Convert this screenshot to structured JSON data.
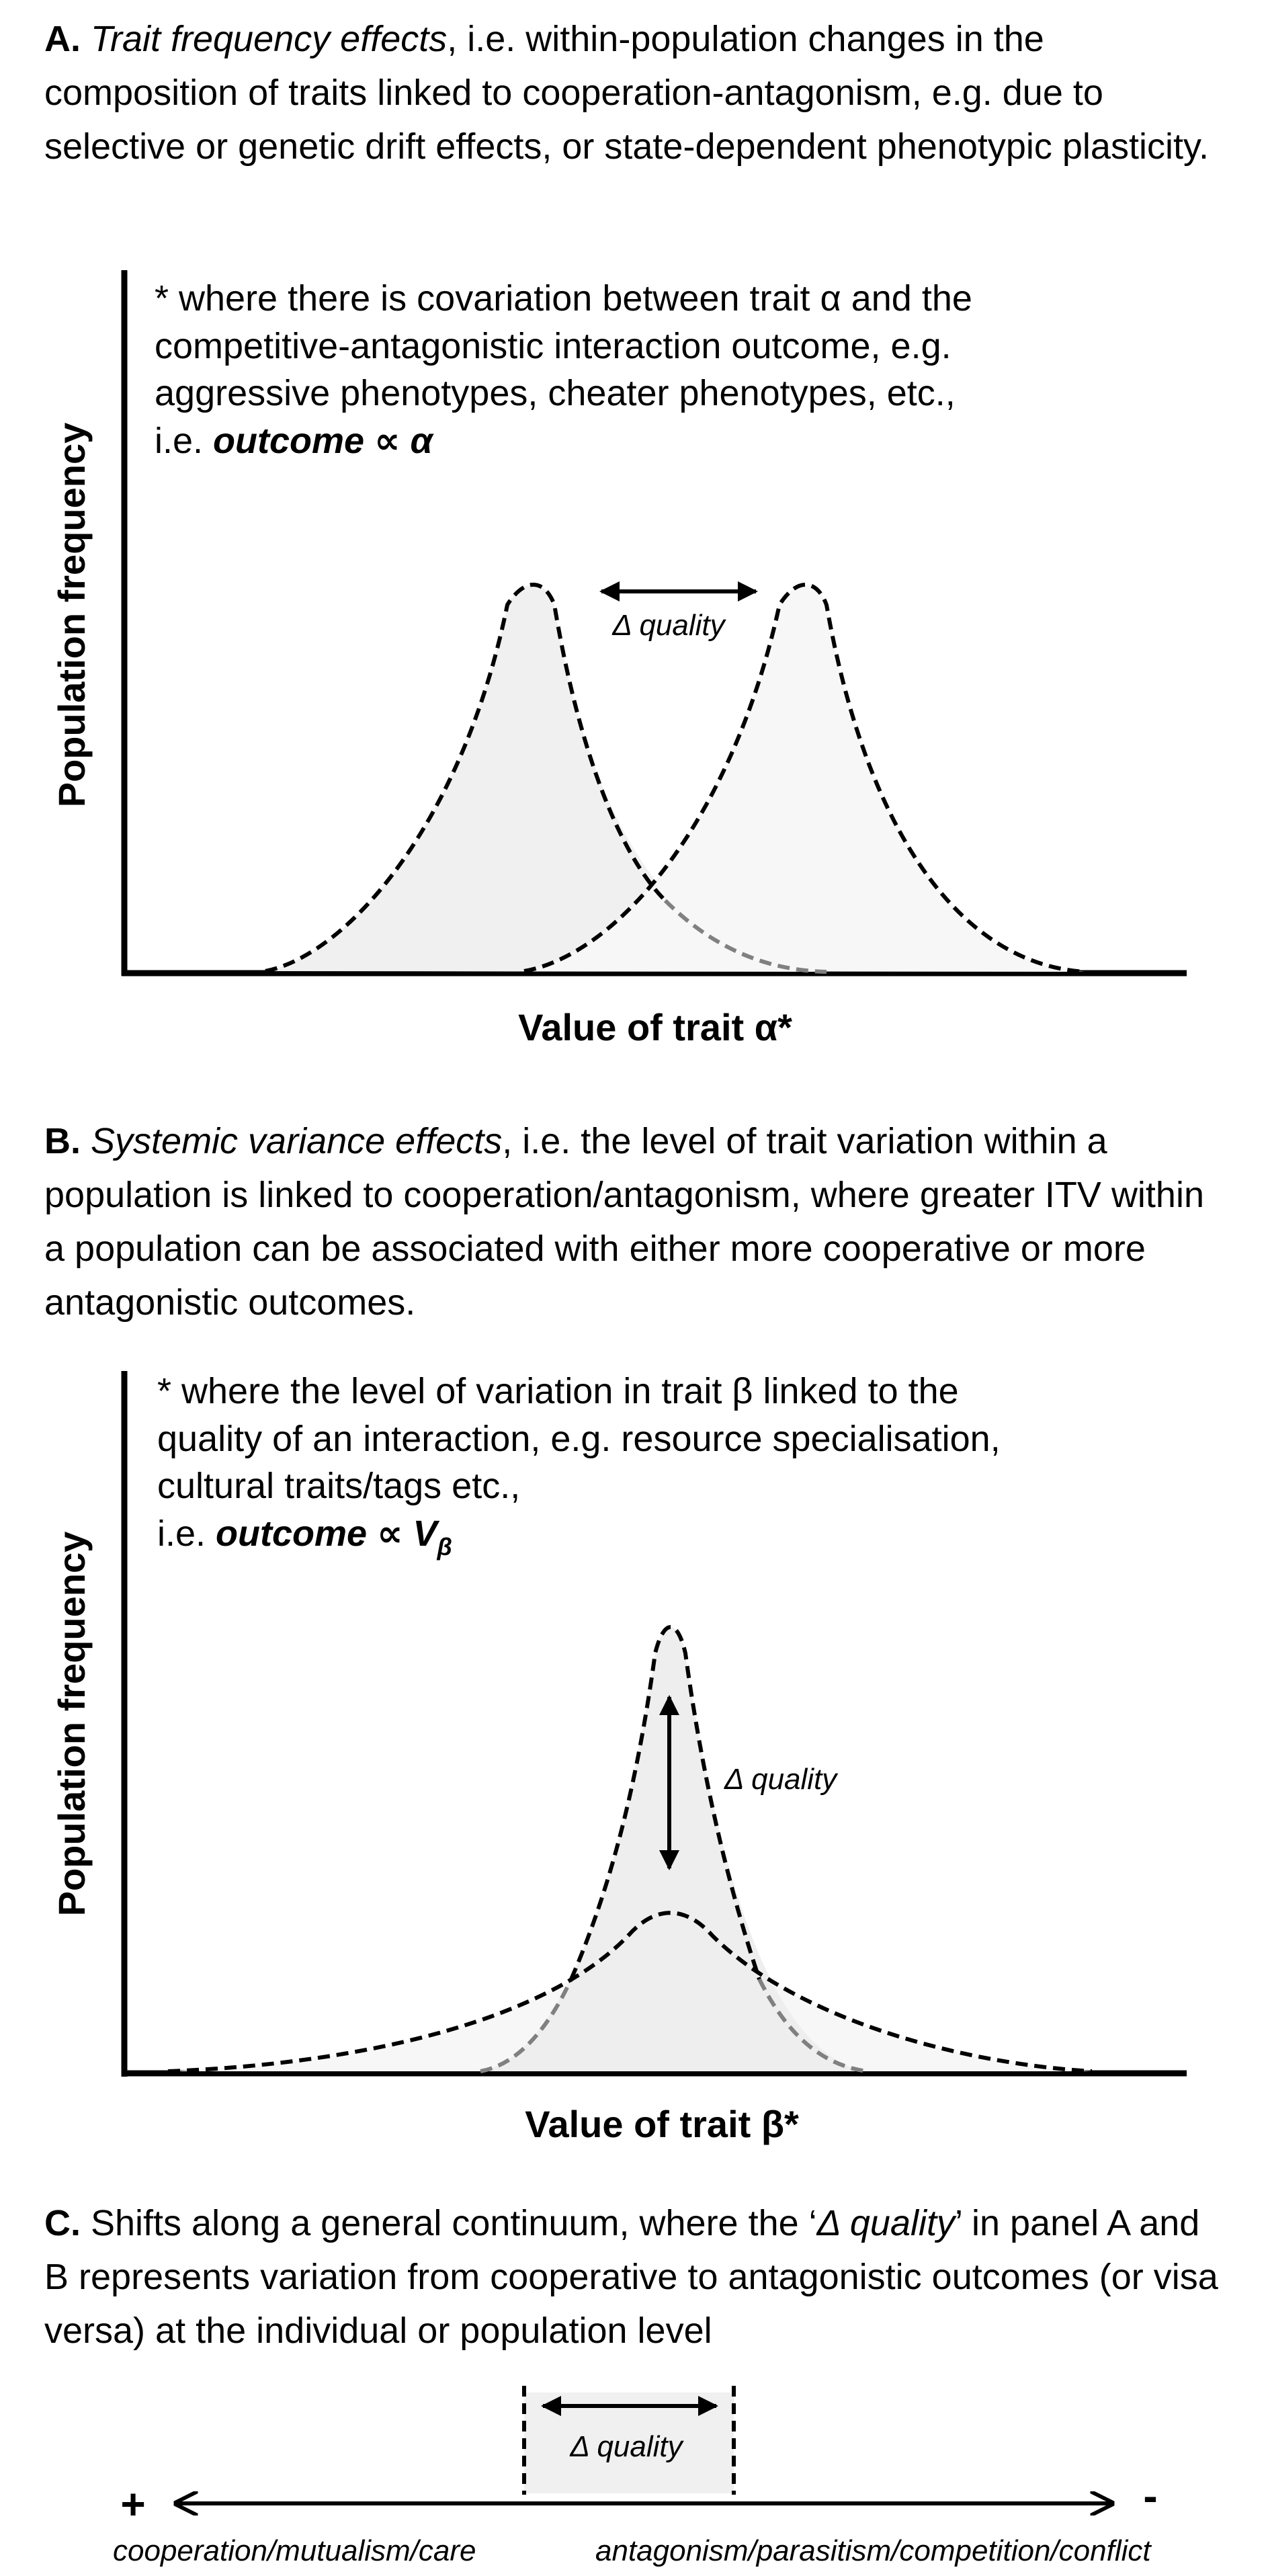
{
  "panelA": {
    "letter": "A.",
    "title_italic": "Trait frequency effects",
    "title_rest": ", i.e. within-population changes in the composition of traits linked to cooperation-antagonism, e.g. due to selective or genetic drift effects, or state-dependent phenotypic plasticity.",
    "note_line1": "* where there is covariation between trait α and the",
    "note_line2": "competitive-antagonistic interaction outcome, e.g.",
    "note_line3": "aggressive phenotypes, cheater phenotypes, etc.,",
    "note_line4_prefix": "i.e. ",
    "note_line4_formula": "outcome ∝ α",
    "ylabel": "Population frequency",
    "xlabel": "Value of trait α*",
    "delta_label": "Δ quality"
  },
  "panelB": {
    "letter": "B.",
    "title_italic": "Systemic variance effects",
    "title_rest": ", i.e. the level of trait variation within a population is linked to cooperation/antagonism, where greater ITV within a population can be associated with either more cooperative or more antagonistic outcomes.",
    "note_line1": "* where the level of variation in trait β linked to the",
    "note_line2": "quality of an interaction, e.g. resource specialisation,",
    "note_line3": "cultural traits/tags etc.,",
    "note_line4_prefix": "i.e. ",
    "note_line4_formula": "outcome ∝ V",
    "note_line4_sub": "β",
    "ylabel": "Population frequency",
    "xlabel": "Value of trait β*",
    "delta_label": "Δ quality"
  },
  "panelC": {
    "letter": "C.",
    "text_part1": " Shifts along a general continuum, where the ‘",
    "text_italic": "Δ quality",
    "text_part2": "’ in panel A and B represents variation from cooperative to antagonistic outcomes (or visa versa) at the individual or population level",
    "delta_label": "Δ quality",
    "plus_sign": "+",
    "minus_sign": "-",
    "left_label": "cooperation/mutualism/care",
    "right_label": "antagonism/parasitism/competition/conflict"
  },
  "colors": {
    "fill_light": "#f0f0f0",
    "fill_lighter": "#f7f7f7",
    "dashed_grey": "#808080",
    "ink": "#000000"
  }
}
